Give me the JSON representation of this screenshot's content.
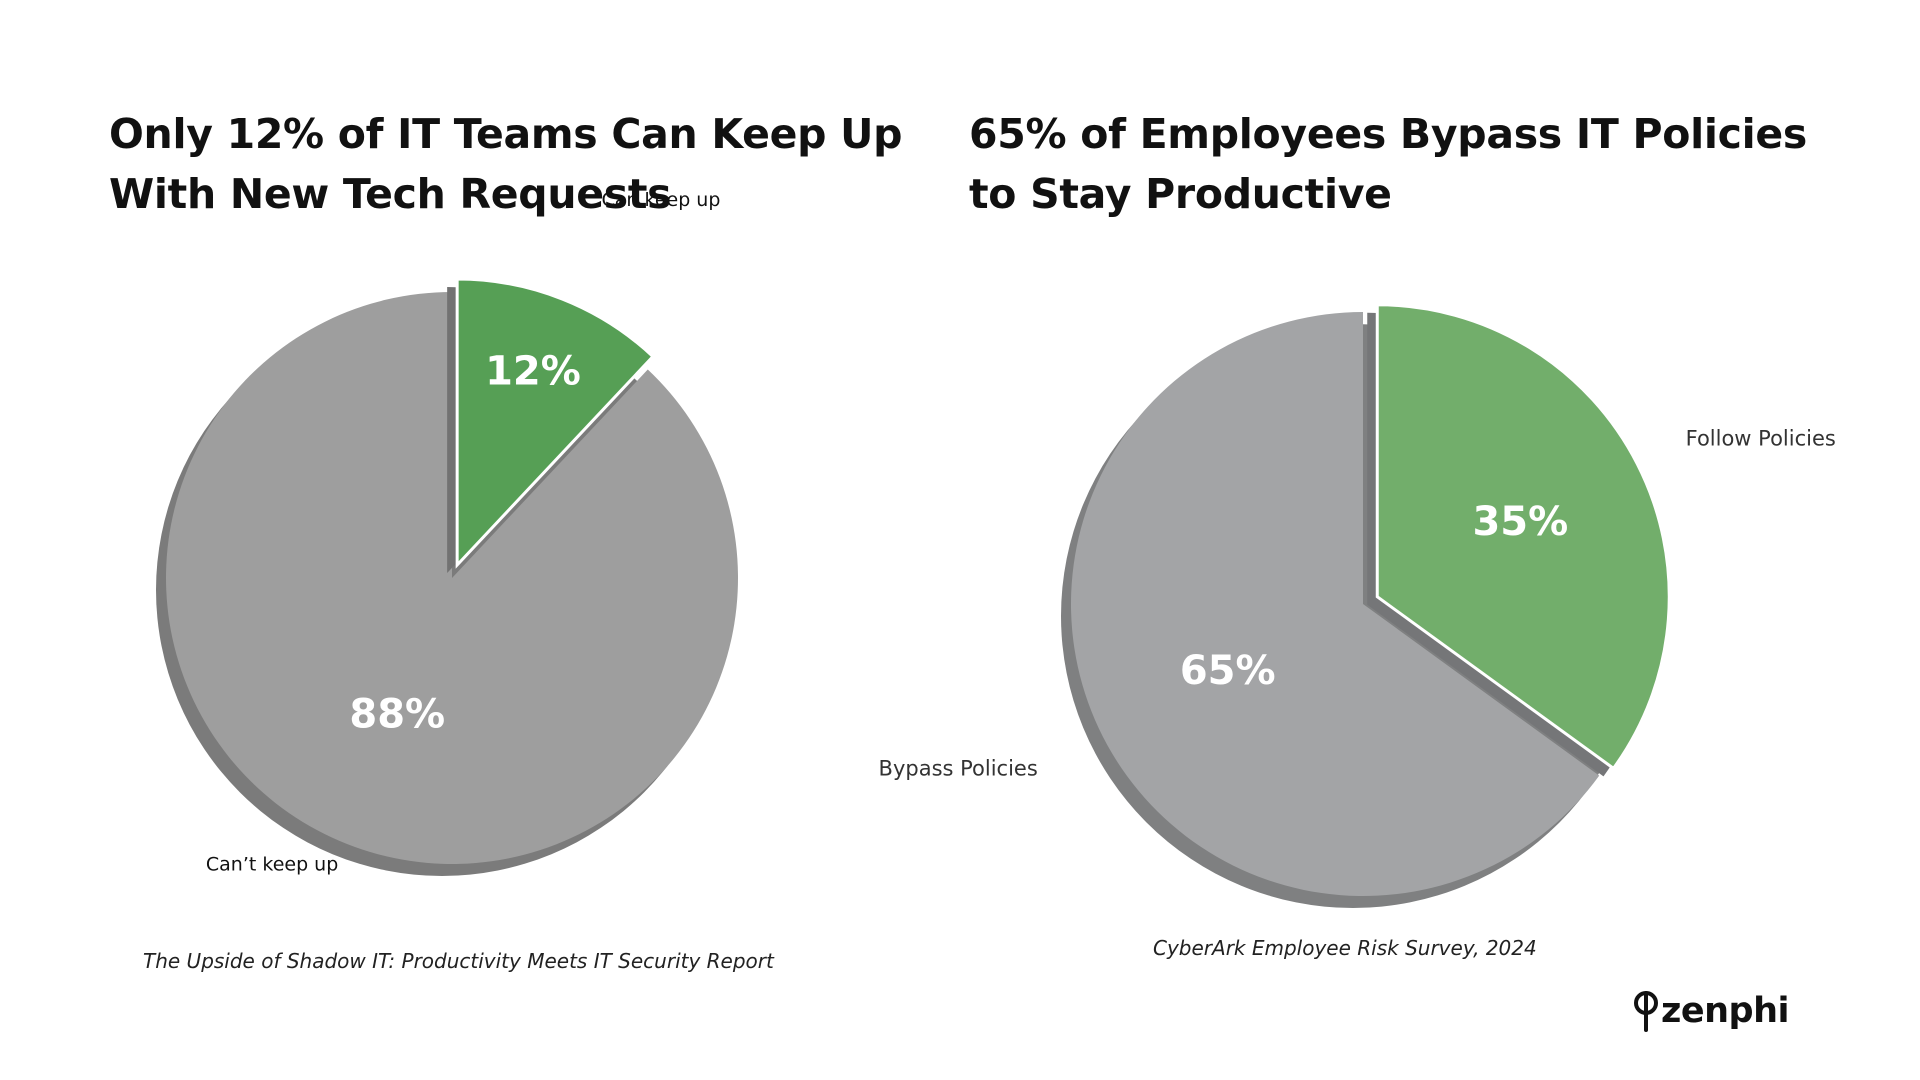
{
  "charts": {
    "left": {
      "title_lines": [
        "Only 12% of IT Teams Can Keep Up",
        "With New Tech Requests"
      ],
      "source": "The Upside of Shadow IT: Productivity Meets IT Security Report"
    },
    "right": {
      "title_lines": [
        "65% of Employees Bypass IT Policies",
        "to Stay Productive"
      ],
      "source": "CyberArk Employee Risk Survey, 2024"
    }
  },
  "chart_data": [
    {
      "type": "pie",
      "title": "Only 12% of IT Teams Can Keep Up With New Tech Requests",
      "categories": [
        "Can keep up",
        "Can’t keep up"
      ],
      "values": [
        12,
        88
      ],
      "value_labels": [
        "12%",
        "88%"
      ],
      "colors": [
        "#569f55",
        "#9e9e9e"
      ],
      "exploded": "Can keep up",
      "start": "top, clockwise",
      "source": "The Upside of Shadow IT: Productivity Meets IT Security Report"
    },
    {
      "type": "pie",
      "title": "65% of Employees Bypass IT Policies to Stay Productive",
      "categories": [
        "Follow Policies",
        "Bypass Policies"
      ],
      "values": [
        35,
        65
      ],
      "value_labels": [
        "35%",
        "65%"
      ],
      "colors": [
        "#72ae6b",
        "#a3a4a6"
      ],
      "exploded": "Follow Policies",
      "start": "top, clockwise",
      "source": "CyberArk Employee Risk Survey, 2024"
    }
  ],
  "brand": {
    "name": "zenphi",
    "accent": "#111111"
  }
}
